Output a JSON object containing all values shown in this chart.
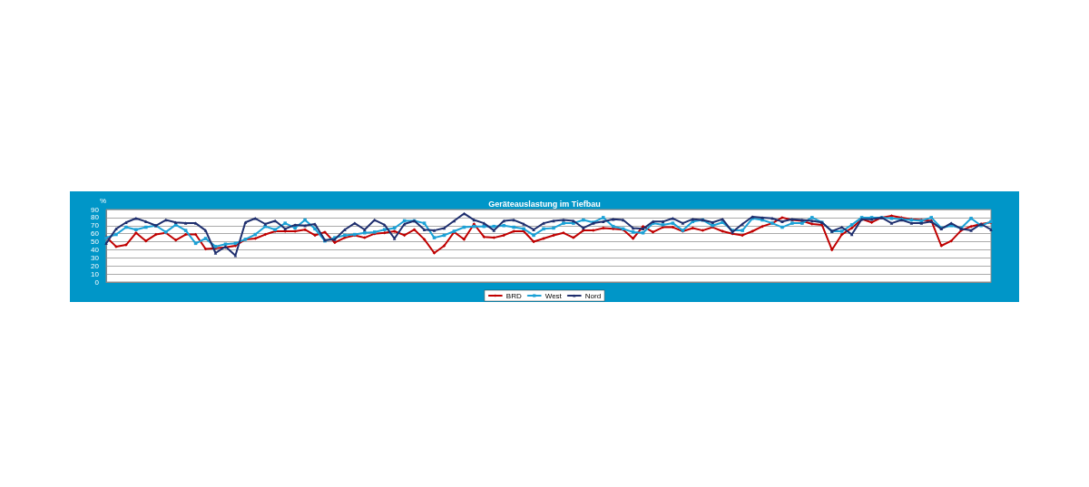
{
  "chart_data": {
    "type": "line",
    "title": "Geräteauslastung im Tiefbau",
    "ylabel": "%",
    "categories": [
      null,
      null,
      null,
      null,
      null,
      null,
      null,
      null,
      null,
      null,
      null,
      null,
      null,
      null,
      null,
      null,
      null,
      null,
      null,
      null,
      null,
      null,
      null,
      null,
      null,
      null,
      null,
      null,
      null,
      null,
      null,
      null,
      null,
      null,
      null,
      null,
      null,
      null,
      null,
      null,
      null,
      null,
      null,
      null,
      null,
      null,
      null,
      null,
      null,
      null,
      null,
      null,
      null,
      null,
      null,
      null,
      null,
      null,
      null,
      null,
      null,
      null,
      null,
      null,
      null,
      null,
      null,
      null,
      null,
      null,
      null,
      null,
      null,
      null,
      null,
      null,
      null,
      null,
      null,
      null,
      null,
      null,
      null,
      null,
      null,
      null,
      null,
      null,
      null,
      null
    ],
    "ylim": [
      0,
      90
    ],
    "yticks": [
      0,
      10,
      20,
      30,
      40,
      50,
      60,
      70,
      80,
      90
    ],
    "grid": "y",
    "legend": "bottom",
    "series": [
      {
        "name": "BRD",
        "color": "#c00000",
        "marker": "diamond",
        "values": [
          56,
          44,
          46,
          61,
          51,
          59,
          61,
          52,
          59,
          59,
          41,
          42,
          43,
          45,
          53,
          54,
          59,
          63,
          63,
          63,
          65,
          58,
          62,
          49,
          55,
          58,
          55,
          60,
          61,
          63,
          58,
          65,
          53,
          36,
          45,
          62,
          53,
          72,
          56,
          55,
          58,
          63,
          63,
          50,
          54,
          58,
          61,
          55,
          64,
          64,
          67,
          66,
          65,
          54,
          69,
          62,
          68,
          68,
          63,
          67,
          64,
          68,
          63,
          60,
          58,
          63,
          69,
          73,
          80,
          77,
          76,
          72,
          71,
          40,
          59,
          67,
          78,
          74,
          80,
          82,
          80,
          78,
          77,
          76,
          45,
          51,
          64,
          69,
          72,
          74
        ]
      },
      {
        "name": "West",
        "color": "#1ba1d6",
        "marker": "square",
        "values": [
          55,
          59,
          68,
          65,
          68,
          70,
          62,
          71,
          64,
          48,
          54,
          44,
          47,
          48,
          53,
          59,
          69,
          65,
          73,
          67,
          77,
          66,
          51,
          55,
          58,
          59,
          61,
          62,
          65,
          67,
          76,
          76,
          73,
          55,
          58,
          63,
          68,
          69,
          69,
          69,
          70,
          68,
          66,
          58,
          66,
          67,
          73,
          73,
          77,
          74,
          80,
          69,
          66,
          62,
          61,
          73,
          71,
          73,
          64,
          75,
          77,
          70,
          74,
          64,
          64,
          79,
          77,
          73,
          68,
          73,
          73,
          80,
          74,
          63,
          63,
          71,
          80,
          80,
          80,
          79,
          78,
          77,
          76,
          80,
          67,
          70,
          67,
          79,
          70,
          75
        ]
      },
      {
        "name": "Nord",
        "color": "#1f2f6e",
        "marker": "triangle",
        "values": [
          48,
          66,
          74,
          79,
          75,
          70,
          77,
          74,
          73,
          73,
          64,
          36,
          44,
          33,
          74,
          79,
          72,
          76,
          66,
          71,
          70,
          72,
          52,
          53,
          65,
          73,
          65,
          77,
          71,
          54,
          72,
          76,
          65,
          64,
          67,
          76,
          85,
          77,
          73,
          64,
          76,
          77,
          72,
          65,
          73,
          76,
          77,
          76,
          67,
          73,
          75,
          78,
          77,
          67,
          66,
          75,
          75,
          79,
          73,
          78,
          77,
          74,
          78,
          62,
          72,
          81,
          80,
          79,
          75,
          78,
          77,
          76,
          74,
          63,
          68,
          59,
          78,
          78,
          80,
          73,
          77,
          73,
          73,
          75,
          66,
          73,
          66,
          64,
          72,
          65
        ]
      }
    ]
  }
}
